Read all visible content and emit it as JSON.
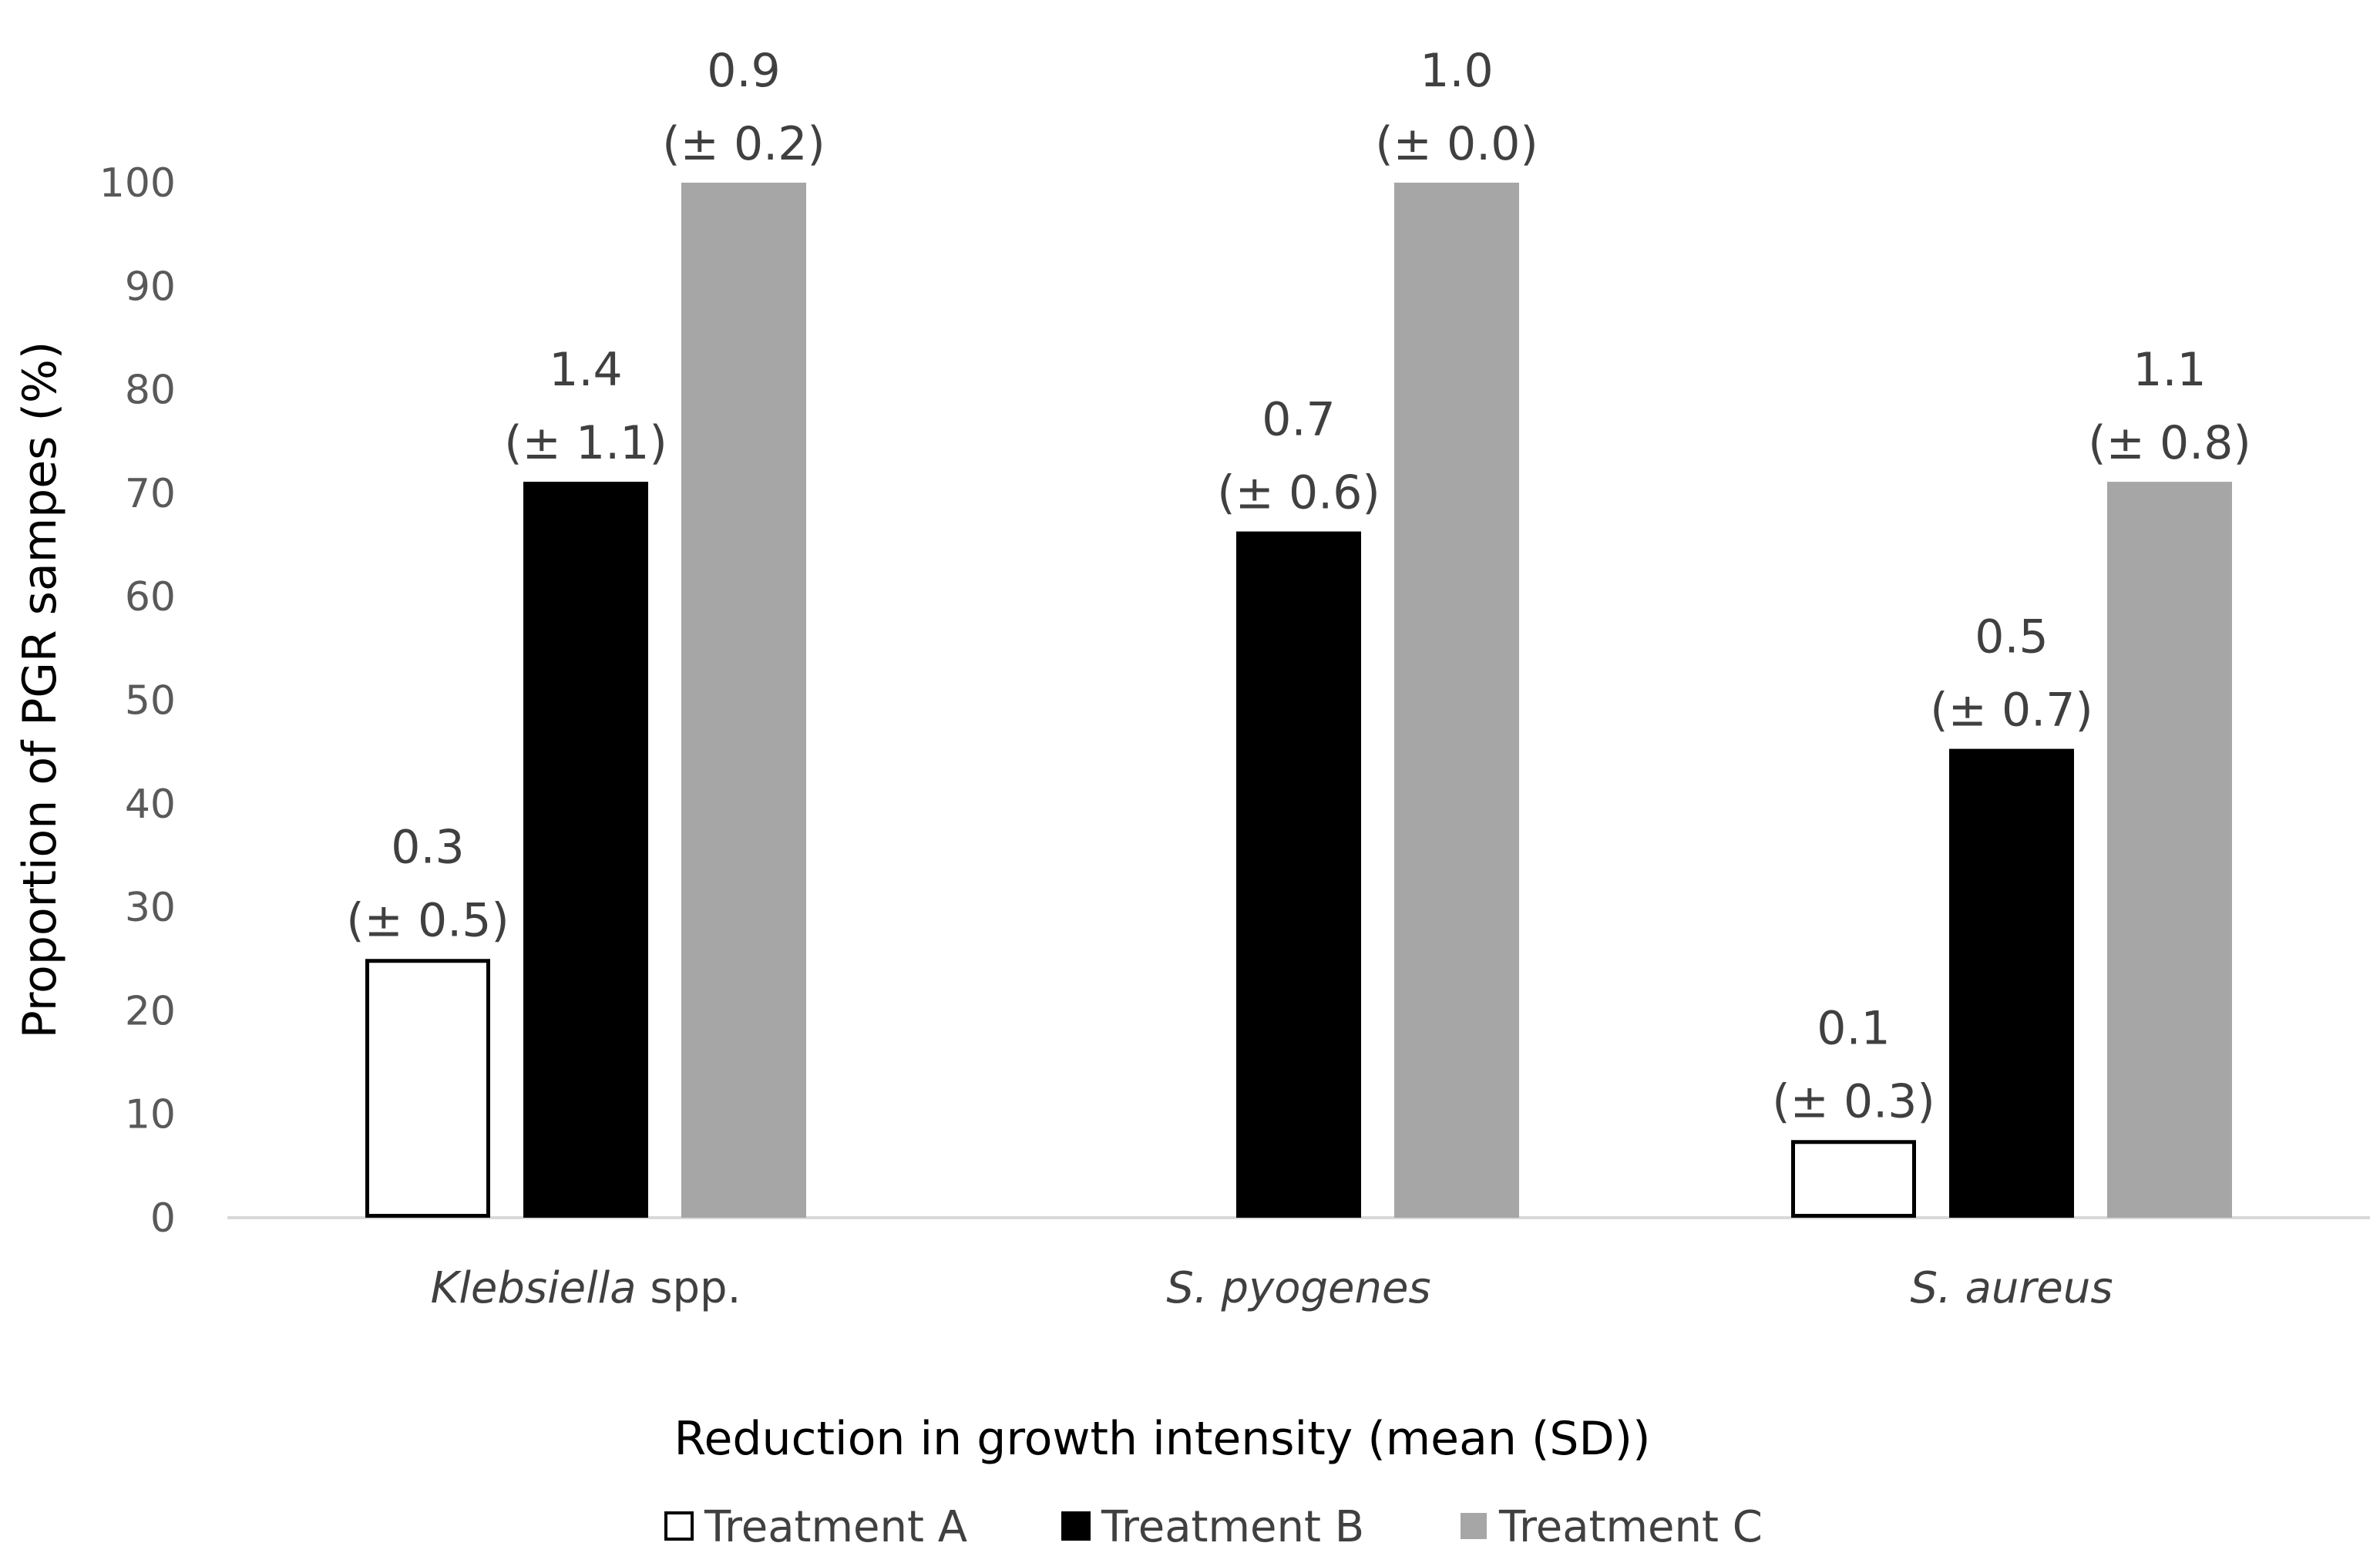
{
  "chart_data": {
    "type": "bar",
    "title": "",
    "xlabel": "Reduction in growth intensity (mean (SD))",
    "ylabel": "Proportion of PGR sampes (%)",
    "ylim": [
      0,
      100
    ],
    "yticks": [
      0,
      10,
      20,
      30,
      40,
      50,
      60,
      70,
      80,
      90,
      100
    ],
    "grid": false,
    "legend_position": "bottom",
    "categories": [
      {
        "name": "Klebsiella",
        "suffix": " spp."
      },
      {
        "name": "S. pyogenes",
        "suffix": ""
      },
      {
        "name": "S. aureus",
        "suffix": ""
      }
    ],
    "series": [
      {
        "name": "Treatment A",
        "fill": "#ffffff",
        "stroke": "#000000",
        "values": [
          25,
          0,
          7.5
        ],
        "labels": [
          {
            "mean": "0.3",
            "sd": "(± 0.5)"
          },
          null,
          {
            "mean": "0.1",
            "sd": "(± 0.3)"
          }
        ]
      },
      {
        "name": "Treatment B",
        "fill": "#000000",
        "stroke": "#000000",
        "values": [
          71.1,
          66.3,
          45.3
        ],
        "labels": [
          {
            "mean": "1.4",
            "sd": "(± 1.1)"
          },
          {
            "mean": "0.7",
            "sd": "(± 0.6)"
          },
          {
            "mean": "0.5",
            "sd": "(± 0.7)"
          }
        ]
      },
      {
        "name": "Treatment C",
        "fill": "#a6a6a6",
        "stroke": "none",
        "values": [
          100,
          100,
          71.1
        ],
        "labels": [
          {
            "mean": "0.9",
            "sd": "(± 0.2)"
          },
          {
            "mean": "1.0",
            "sd": "(± 0.0)"
          },
          {
            "mean": "1.1",
            "sd": "(± 0.8)"
          }
        ]
      }
    ]
  }
}
